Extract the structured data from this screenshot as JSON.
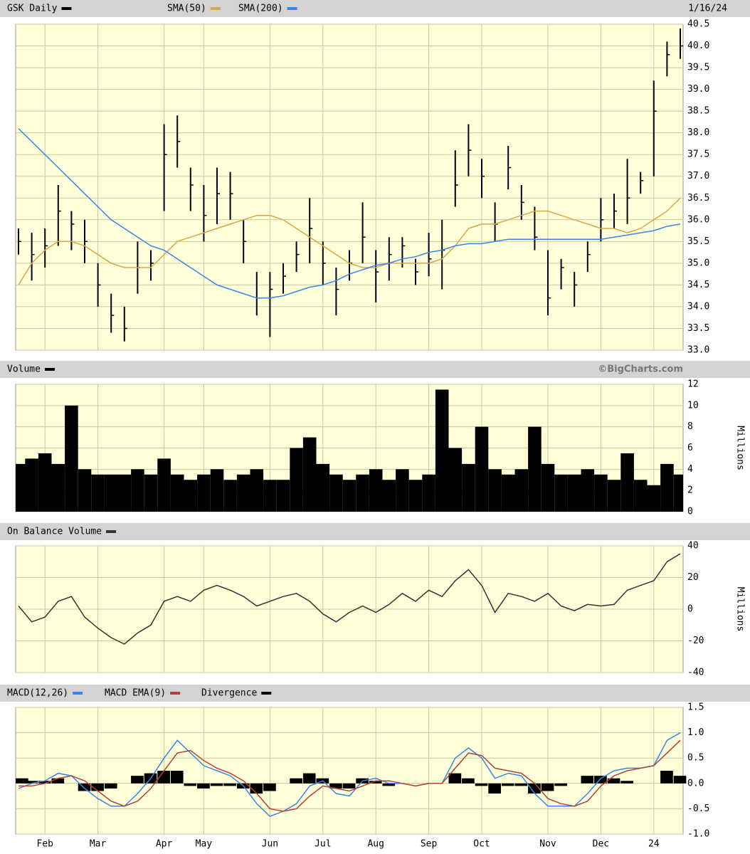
{
  "chart_data": [
    {
      "type": "ohlc",
      "date": "1/16/24",
      "series": [
        {
          "name": "GSK Daily",
          "color": "#000000",
          "high": [
            35.8,
            35.7,
            35.8,
            36.8,
            36.2,
            36.0,
            35.0,
            34.3,
            34.0,
            35.5,
            35.3,
            38.2,
            38.4,
            37.2,
            36.8,
            37.2,
            37.1,
            36.0,
            34.8,
            34.8,
            35.0,
            35.5,
            36.5,
            35.5,
            34.9,
            35.3,
            36.4,
            35.3,
            35.6,
            35.6,
            35.1,
            35.7,
            36.0,
            37.6,
            38.2,
            37.4,
            36.4,
            37.7,
            36.8,
            36.3,
            35.3,
            35.1,
            34.8,
            35.5,
            36.5,
            36.6,
            37.4,
            37.1,
            39.2,
            40.1,
            40.4
          ],
          "low": [
            35.2,
            34.6,
            34.9,
            35.4,
            35.3,
            35.0,
            34.0,
            33.4,
            33.2,
            34.3,
            34.6,
            36.2,
            37.2,
            36.2,
            35.5,
            35.9,
            36.0,
            35.0,
            33.8,
            33.3,
            34.3,
            34.8,
            35.0,
            34.5,
            33.8,
            34.6,
            35.0,
            34.1,
            34.6,
            34.9,
            34.5,
            34.7,
            34.4,
            36.3,
            37.0,
            36.5,
            35.5,
            36.7,
            36.0,
            35.3,
            33.8,
            34.4,
            34.0,
            34.8,
            35.5,
            35.8,
            35.9,
            36.6,
            37.0,
            39.3,
            39.7
          ],
          "close": [
            35.5,
            35.2,
            35.4,
            36.2,
            35.9,
            35.5,
            34.5,
            33.8,
            33.5,
            34.9,
            35.0,
            37.5,
            37.8,
            36.8,
            36.1,
            36.6,
            36.6,
            35.5,
            34.2,
            34.4,
            34.7,
            35.2,
            35.8,
            35.0,
            34.4,
            35.0,
            35.6,
            34.8,
            35.2,
            35.4,
            34.8,
            35.1,
            35.3,
            36.8,
            37.6,
            37.0,
            35.9,
            37.2,
            36.4,
            35.6,
            34.2,
            34.9,
            34.5,
            35.2,
            36.0,
            36.2,
            36.5,
            36.9,
            38.5,
            39.8,
            40.0
          ]
        },
        {
          "name": "SMA(50)",
          "color": "#d9a64a",
          "values": [
            34.5,
            35.0,
            35.3,
            35.5,
            35.5,
            35.4,
            35.2,
            35.0,
            34.9,
            34.9,
            34.9,
            35.2,
            35.5,
            35.6,
            35.7,
            35.8,
            35.9,
            36.0,
            36.1,
            36.1,
            36.0,
            35.8,
            35.6,
            35.4,
            35.2,
            35.0,
            34.9,
            34.9,
            35.0,
            35.0,
            35.0,
            35.0,
            35.1,
            35.4,
            35.8,
            35.9,
            35.9,
            36.0,
            36.1,
            36.2,
            36.2,
            36.1,
            36.0,
            35.9,
            35.8,
            35.8,
            35.7,
            35.8,
            36.0,
            36.2,
            36.5
          ]
        },
        {
          "name": "SMA(200)",
          "color": "#3a86e8",
          "values": [
            38.1,
            37.8,
            37.5,
            37.2,
            36.9,
            36.6,
            36.3,
            36.0,
            35.8,
            35.6,
            35.4,
            35.3,
            35.1,
            34.9,
            34.7,
            34.5,
            34.4,
            34.3,
            34.2,
            34.2,
            34.25,
            34.35,
            34.45,
            34.5,
            34.6,
            34.75,
            34.85,
            34.95,
            35.0,
            35.1,
            35.15,
            35.25,
            35.3,
            35.4,
            35.45,
            35.45,
            35.5,
            35.55,
            35.55,
            35.55,
            35.55,
            35.55,
            35.55,
            35.55,
            35.55,
            35.6,
            35.65,
            35.7,
            35.75,
            35.85,
            35.9
          ]
        }
      ],
      "ylim": [
        33.0,
        40.5
      ],
      "yticks": [
        {
          "value": 33.0,
          "label": "33.0"
        },
        {
          "value": 33.5,
          "label": "33.5"
        },
        {
          "value": 34.0,
          "label": "34.0"
        },
        {
          "value": 34.5,
          "label": "34.5"
        },
        {
          "value": 35.0,
          "label": "35.0"
        },
        {
          "value": 35.5,
          "label": "35.5"
        },
        {
          "value": 36.0,
          "label": "36.0"
        },
        {
          "value": 36.5,
          "label": "36.5"
        },
        {
          "value": 37.0,
          "label": "37.0"
        },
        {
          "value": 37.5,
          "label": "37.5"
        },
        {
          "value": 38.0,
          "label": "38.0"
        },
        {
          "value": 38.5,
          "label": "38.5"
        },
        {
          "value": 39.0,
          "label": "39.0"
        },
        {
          "value": 39.5,
          "label": "39.5"
        },
        {
          "value": 40.0,
          "label": "40.0"
        },
        {
          "value": 40.5,
          "label": "40.5"
        }
      ],
      "grid": true
    },
    {
      "type": "bar",
      "source": "©BigCharts.com",
      "y_label": "Millions",
      "series": [
        {
          "name": "Volume",
          "color": "#000000",
          "values": [
            4.5,
            5,
            5.5,
            4.5,
            10,
            4,
            3.5,
            3.5,
            3.5,
            4,
            3.5,
            5,
            3.5,
            3,
            3.5,
            4,
            3,
            3.5,
            4,
            3,
            3,
            6,
            7,
            4.5,
            3.5,
            3,
            3.5,
            4,
            3,
            4,
            3,
            3.5,
            11.5,
            6,
            4.5,
            8,
            4,
            3.5,
            4,
            8,
            4.5,
            3.5,
            3.5,
            4,
            3.5,
            3,
            5.5,
            3,
            2.5,
            4.5,
            3.5
          ]
        }
      ],
      "ylim": [
        0,
        12
      ],
      "yticks": [
        0,
        2,
        4,
        6,
        8,
        10,
        12
      ],
      "grid": true
    },
    {
      "type": "line",
      "y_label": "Millions",
      "series": [
        {
          "name": "On Balance Volume",
          "color": "#333333",
          "values": [
            2,
            -8,
            -5,
            5,
            8,
            -5,
            -12,
            -18,
            -22,
            -15,
            -10,
            5,
            8,
            5,
            12,
            15,
            12,
            8,
            2,
            5,
            8,
            10,
            5,
            -3,
            -8,
            -2,
            2,
            -2,
            3,
            10,
            5,
            12,
            8,
            18,
            25,
            15,
            -2,
            10,
            8,
            5,
            10,
            2,
            -1,
            3,
            2,
            3,
            12,
            15,
            18,
            30,
            35
          ]
        }
      ],
      "ylim": [
        -40,
        40
      ],
      "yticks": [
        -40,
        -20,
        0,
        20,
        40
      ],
      "grid": true
    },
    {
      "type": "macd",
      "categories": [
        null,
        null,
        "Feb",
        null,
        null,
        null,
        "Mar",
        null,
        null,
        null,
        null,
        "Apr",
        null,
        null,
        "May",
        null,
        null,
        null,
        null,
        "Jun",
        null,
        null,
        null,
        "Jul",
        null,
        null,
        null,
        "Aug",
        null,
        null,
        null,
        "Sep",
        null,
        null,
        null,
        "Oct",
        null,
        null,
        null,
        null,
        "Nov",
        null,
        null,
        null,
        "Dec",
        null,
        null,
        null,
        "24",
        null,
        null
      ],
      "series": [
        {
          "name": "MACD(12,26)",
          "color": "#3a86e8",
          "values": [
            -0.1,
            0,
            0.05,
            0.2,
            0.15,
            -0.1,
            -0.3,
            -0.45,
            -0.45,
            -0.2,
            0.1,
            0.5,
            0.85,
            0.6,
            0.35,
            0.25,
            0.15,
            -0.05,
            -0.4,
            -0.65,
            -0.55,
            -0.4,
            -0.05,
            0.05,
            -0.2,
            -0.25,
            0.05,
            0.1,
            0,
            0,
            -0.05,
            0,
            0,
            0.5,
            0.7,
            0.5,
            0.1,
            0.2,
            0.15,
            -0.2,
            -0.45,
            -0.45,
            -0.45,
            -0.2,
            0.1,
            0.25,
            0.3,
            0.3,
            0.35,
            0.85,
            1.0
          ]
        },
        {
          "name": "MACD EMA(9)",
          "color": "#b5403a",
          "values": [
            -0.05,
            -0.05,
            0,
            0.1,
            0.15,
            0.05,
            -0.15,
            -0.35,
            -0.45,
            -0.35,
            -0.1,
            0.25,
            0.6,
            0.65,
            0.45,
            0.3,
            0.2,
            0.05,
            -0.2,
            -0.5,
            -0.55,
            -0.5,
            -0.25,
            -0.05,
            -0.1,
            -0.15,
            -0.05,
            0.05,
            0.05,
            0,
            -0.05,
            0,
            0,
            0.3,
            0.6,
            0.55,
            0.3,
            0.25,
            0.2,
            0,
            -0.3,
            -0.4,
            -0.45,
            -0.35,
            -0.05,
            0.15,
            0.25,
            0.3,
            0.35,
            0.6,
            0.85
          ]
        },
        {
          "name": "Divergence",
          "color": "#000000",
          "values": [
            0.1,
            0.05,
            0.05,
            0.1,
            0,
            -0.15,
            -0.15,
            -0.1,
            0,
            0.15,
            0.2,
            0.25,
            0.25,
            -0.05,
            -0.1,
            -0.05,
            -0.05,
            -0.1,
            -0.2,
            -0.15,
            0,
            0.1,
            0.2,
            0.1,
            -0.1,
            -0.1,
            0.1,
            0.05,
            -0.05,
            0,
            0,
            0,
            0,
            0.2,
            0.1,
            -0.05,
            -0.2,
            -0.05,
            -0.05,
            -0.2,
            -0.15,
            -0.05,
            0,
            0.15,
            0.15,
            0.1,
            0.05,
            0,
            0,
            0.25,
            0.15
          ]
        }
      ],
      "ylim": [
        -1.0,
        1.5
      ],
      "yticks": [
        {
          "value": -1.0,
          "label": "-1.0"
        },
        {
          "value": -0.5,
          "label": "-0.5"
        },
        {
          "value": 0.0,
          "label": "0.0"
        },
        {
          "value": 0.5,
          "label": "0.5"
        },
        {
          "value": 1.0,
          "label": "1.0"
        },
        {
          "value": 1.5,
          "label": "1.5"
        }
      ],
      "grid": true
    }
  ]
}
